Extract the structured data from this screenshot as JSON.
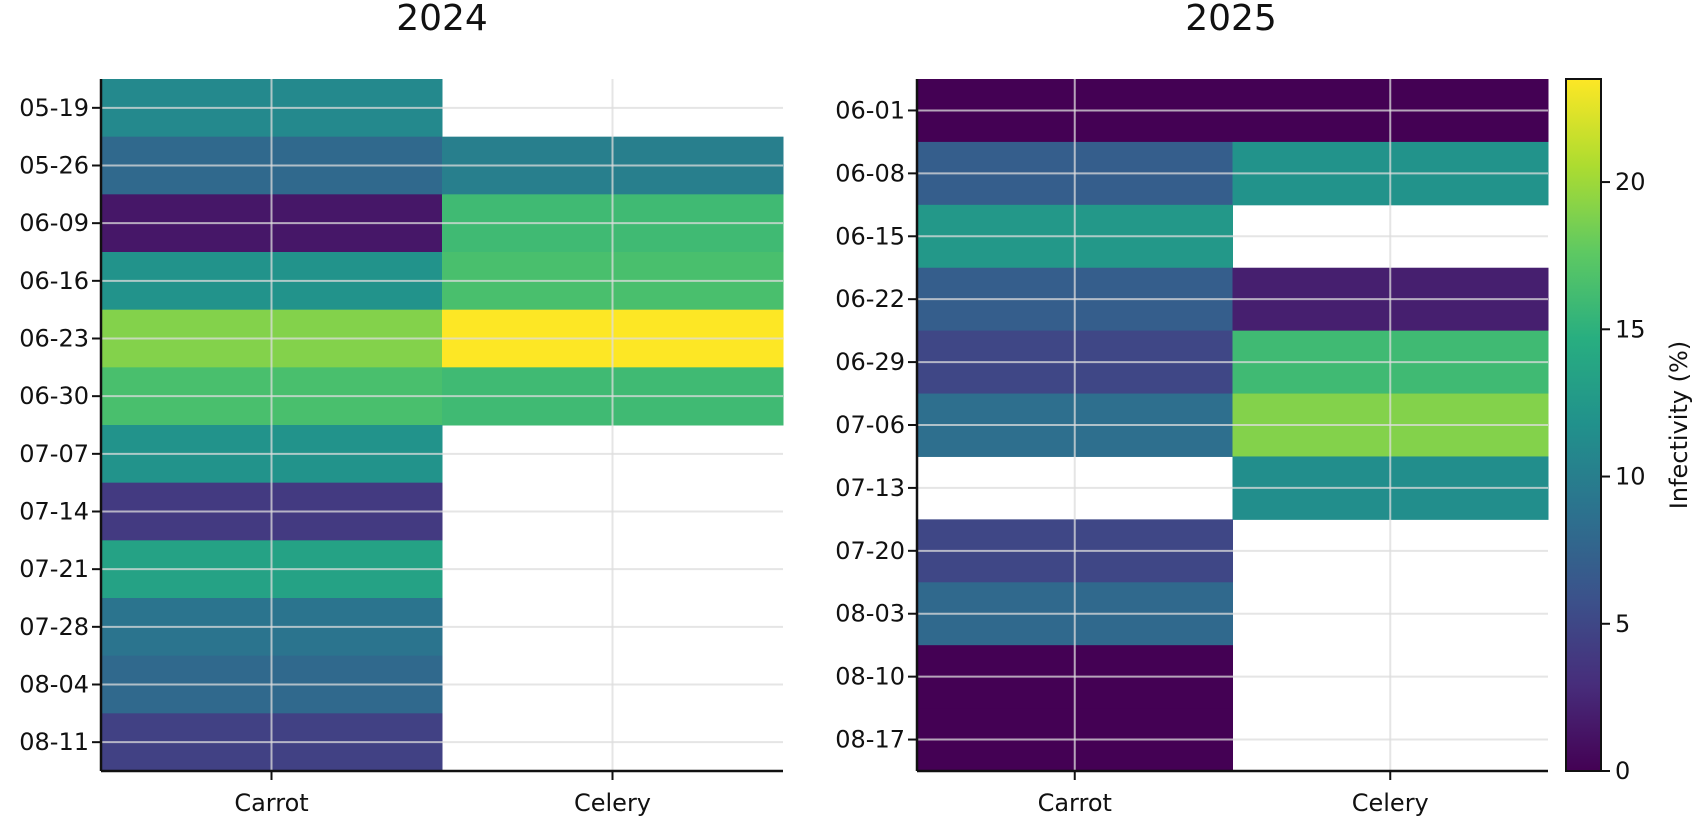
{
  "chart_data": [
    {
      "type": "heatmap",
      "title": "2024",
      "xlabel": "",
      "ylabel": "",
      "columns": [
        "Carrot",
        "Celery"
      ],
      "rows": [
        "05-19",
        "05-26",
        "06-09",
        "06-16",
        "06-23",
        "06-30",
        "07-07",
        "07-14",
        "07-21",
        "07-28",
        "08-04",
        "08-11"
      ],
      "values": [
        [
          11.0,
          null
        ],
        [
          8.0,
          10.0
        ],
        [
          1.5,
          16.0
        ],
        [
          12.0,
          16.5
        ],
        [
          19.0,
          23.5
        ],
        [
          16.5,
          16.0
        ],
        [
          12.0,
          null
        ],
        [
          4.0,
          null
        ],
        [
          13.5,
          null
        ],
        [
          9.0,
          null
        ],
        [
          8.0,
          null
        ],
        [
          4.5,
          null
        ]
      ],
      "grid": true
    },
    {
      "type": "heatmap",
      "title": "2025",
      "xlabel": "",
      "ylabel": "",
      "columns": [
        "Carrot",
        "Celery"
      ],
      "rows": [
        "06-01",
        "06-08",
        "06-15",
        "06-22",
        "06-29",
        "07-06",
        "07-13",
        "07-20",
        "08-03",
        "08-10",
        "08-17"
      ],
      "values": [
        [
          0.0,
          0.0
        ],
        [
          7.0,
          12.0
        ],
        [
          12.5,
          null
        ],
        [
          7.0,
          2.0
        ],
        [
          5.0,
          16.0
        ],
        [
          8.5,
          19.0
        ],
        [
          null,
          11.5
        ],
        [
          5.0,
          null
        ],
        [
          8.0,
          null
        ],
        [
          0.0,
          null
        ],
        [
          0.0,
          null
        ]
      ],
      "grid": true
    }
  ],
  "colorbar": {
    "label": "Infectivity (%)",
    "min": 0,
    "max": 23.5,
    "ticks": [
      "0",
      "5",
      "10",
      "15",
      "20"
    ],
    "colormap": "viridis"
  }
}
